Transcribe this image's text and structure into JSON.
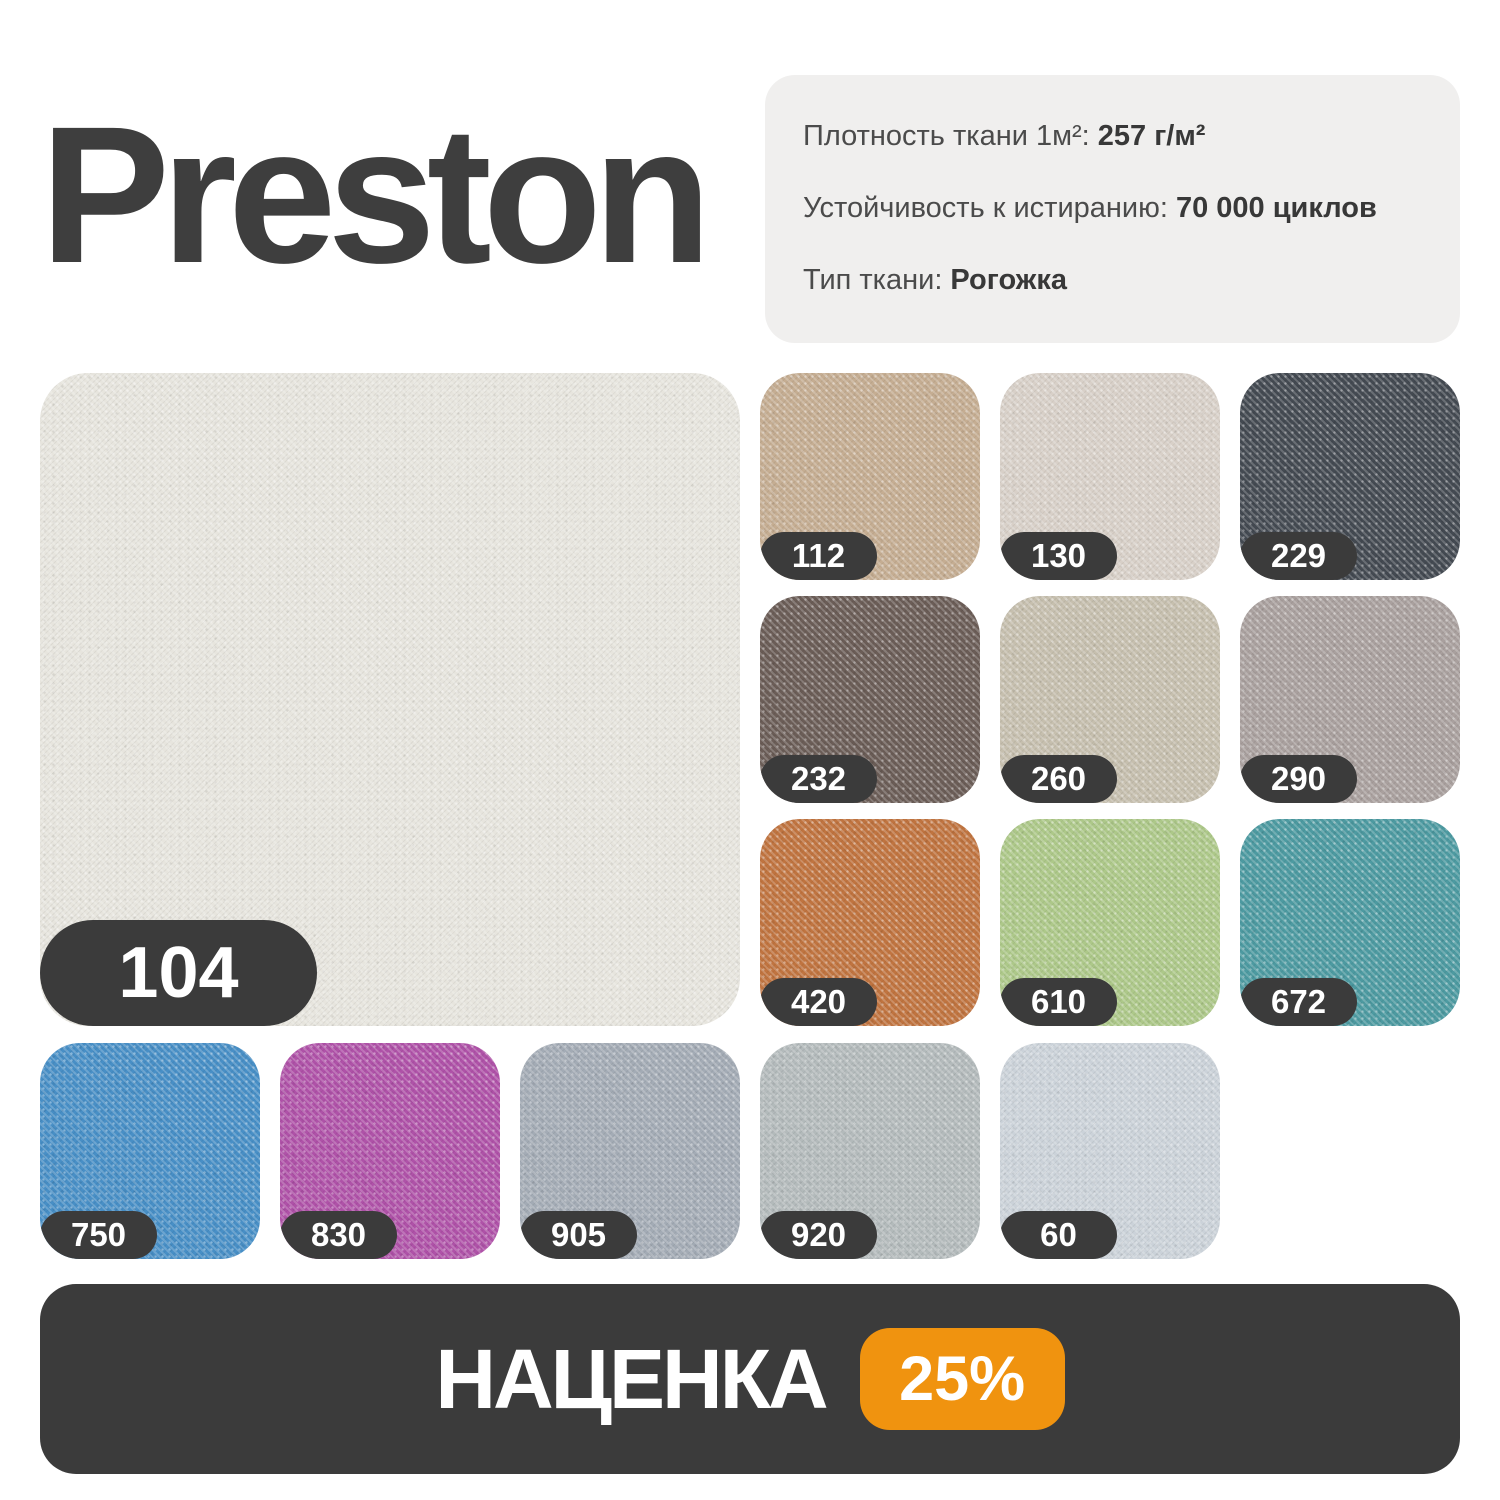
{
  "header": {
    "title": "Preston"
  },
  "specs": {
    "background": "#f0efee",
    "items": [
      {
        "label": "Плотность ткани 1м²:",
        "value": "257 г/м²"
      },
      {
        "label": "Устойчивость к истиранию:",
        "value": "70 000 циклов"
      },
      {
        "label": "Тип ткани:",
        "value": "Рогожка"
      }
    ]
  },
  "main_swatch": {
    "code": "104",
    "color": "#e7e5de"
  },
  "grid_swatches": [
    {
      "code": "112",
      "color": "#c5ad92"
    },
    {
      "code": "130",
      "color": "#d8d0c8"
    },
    {
      "code": "229",
      "color": "#444a52"
    },
    {
      "code": "232",
      "color": "#6b5d57"
    },
    {
      "code": "260",
      "color": "#c6bfae"
    },
    {
      "code": "290",
      "color": "#a9a09e"
    },
    {
      "code": "420",
      "color": "#c07440"
    },
    {
      "code": "610",
      "color": "#adc889"
    },
    {
      "code": "672",
      "color": "#4d9aa1"
    }
  ],
  "bottom_swatches": [
    {
      "code": "750",
      "color": "#488fc6"
    },
    {
      "code": "830",
      "color": "#af52a8"
    },
    {
      "code": "905",
      "color": "#a3abb5"
    },
    {
      "code": "920",
      "color": "#b3babb"
    },
    {
      "code": "60",
      "color": "#cbd2d9"
    }
  ],
  "markup_bar": {
    "label": "НАЦЕНКА",
    "value": "25%",
    "bar_color": "#3b3b3b",
    "badge_color": "#f0930f",
    "code_pill_color": "#3b3b3b"
  }
}
